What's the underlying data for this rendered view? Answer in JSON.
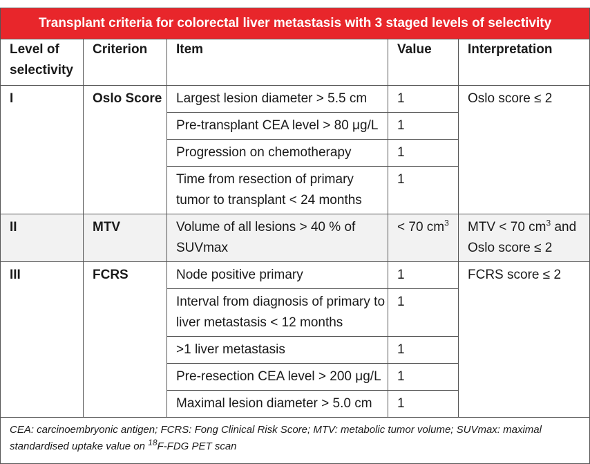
{
  "title": "Transplant criteria for colorectal liver metastasis with 3 staged levels of selectivity",
  "headers": {
    "level": "Level of selectivity",
    "criterion": "Criterion",
    "item": "Item",
    "value": "Value",
    "interpretation": "Interpretation"
  },
  "level1": {
    "level": "I",
    "criterion": "Oslo Score",
    "interpretation": "Oslo score ≤ 2",
    "items": [
      {
        "item": "Largest lesion diameter > 5.5 cm",
        "value": "1"
      },
      {
        "item": "Pre-transplant CEA level > 80 μg/L",
        "value": "1"
      },
      {
        "item": "Progression on chemotherapy",
        "value": "1"
      },
      {
        "item": "Time from resection of primary tumor to transplant < 24 months",
        "value": "1"
      }
    ]
  },
  "level2": {
    "level": "II",
    "criterion": "MTV",
    "item": "Volume of all lesions > 40 % of SUVmax",
    "value_prefix": "< 70 cm",
    "value_sup": "3",
    "interp_prefix": "MTV < 70 cm",
    "interp_sup": "3",
    "interp_suffix": " and Oslo score ≤ 2"
  },
  "level3": {
    "level": "III",
    "criterion": "FCRS",
    "interpretation": "FCRS score ≤ 2",
    "items": [
      {
        "item": "Node positive primary",
        "value": "1"
      },
      {
        "item": "Interval from diagnosis of primary to liver metastasis < 12 months",
        "value": "1"
      },
      {
        "item": ">1 liver metastasis",
        "value": "1"
      },
      {
        "item": "Pre-resection CEA level > 200 μg/L",
        "value": "1"
      },
      {
        "item": "Maximal lesion diameter > 5.0 cm",
        "value": "1"
      }
    ]
  },
  "footnote": {
    "prefix": "CEA: carcinoembryonic antigen; FCRS: Fong Clinical Risk Score; MTV: metabolic tumor volume; SUVmax: maximal standardised uptake value on ",
    "sup": "18",
    "suffix": "F-FDG PET scan"
  }
}
